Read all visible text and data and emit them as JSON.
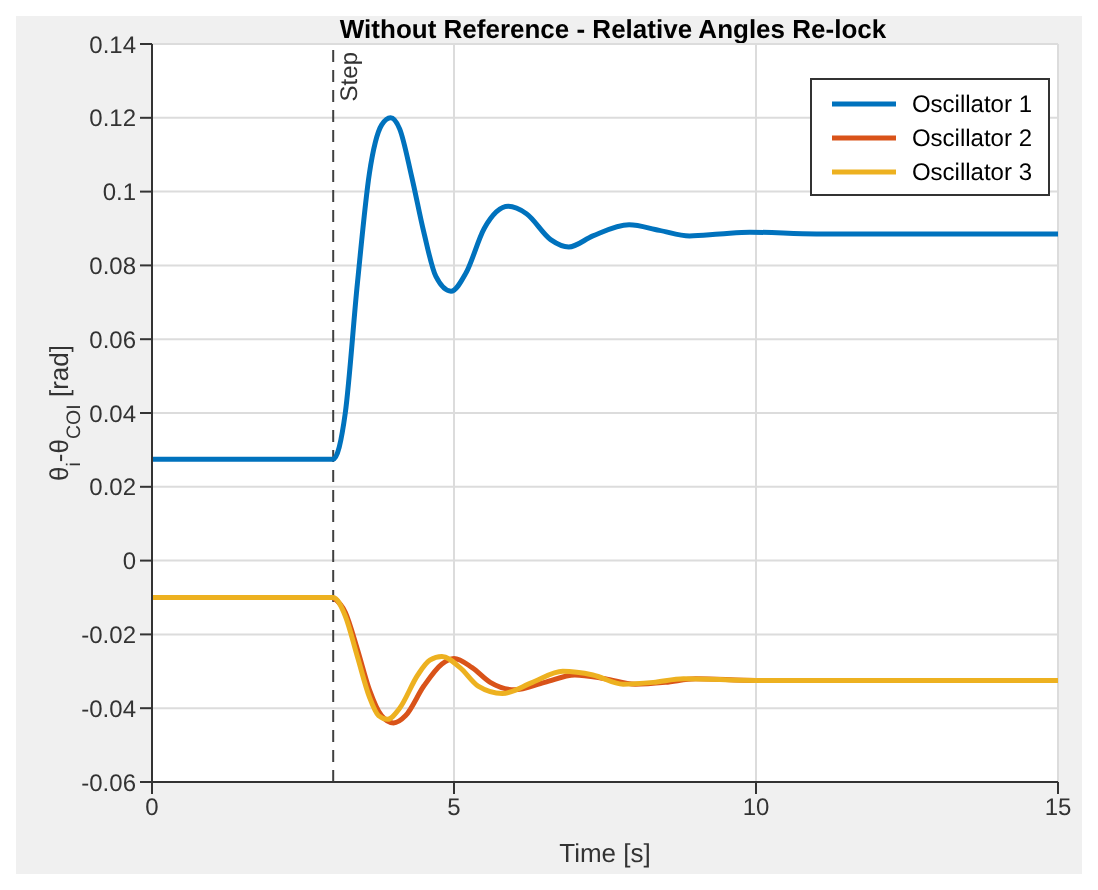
{
  "chart_data": {
    "type": "line",
    "title": "Without Reference - Relative Angles Re-lock",
    "xlabel": "Time [s]",
    "ylabel": "θ$_{i}$-θ$_{COI}$ [rad]",
    "xlim": [
      0,
      15
    ],
    "xticks": [
      0,
      5,
      10,
      15
    ],
    "ylim": [
      -0.06,
      0.14
    ],
    "yticks": [
      -0.06,
      -0.04,
      -0.02,
      0,
      0.02,
      0.04,
      0.06,
      0.08,
      0.1,
      0.12,
      0.14
    ],
    "grid": true,
    "legend": "top right",
    "marker": "none",
    "line_style": "solid",
    "ref_lines": [
      {
        "axis": "x",
        "value": 3,
        "label": "Step",
        "color": "#404040",
        "line_style": "dashed"
      }
    ],
    "series": [
      {
        "name": "Oscillator 1",
        "color": "#0072bd",
        "x": [
          0,
          3,
          3.2,
          3.4,
          3.6,
          3.8,
          3.95,
          4.1,
          4.3,
          4.5,
          4.7,
          4.95,
          5.2,
          5.5,
          5.9,
          6.2,
          6.6,
          6.9,
          7.3,
          7.9,
          8.4,
          8.9,
          9.4,
          9.9,
          11,
          15
        ],
        "values": [
          0.0275,
          0.0275,
          0.04,
          0.075,
          0.105,
          0.118,
          0.12,
          0.117,
          0.104,
          0.089,
          0.077,
          0.073,
          0.078,
          0.09,
          0.096,
          0.094,
          0.087,
          0.085,
          0.088,
          0.091,
          0.0895,
          0.088,
          0.0885,
          0.089,
          0.0885,
          0.0885
        ]
      },
      {
        "name": "Oscillator 2",
        "color": "#d95319",
        "x": [
          3,
          3.2,
          3.4,
          3.6,
          3.8,
          4.0,
          4.2,
          4.5,
          4.8,
          5.0,
          5.3,
          5.6,
          6.0,
          6.5,
          7.0,
          7.5,
          8.0,
          8.5,
          9.0,
          10,
          15
        ],
        "values": [
          -0.01,
          -0.014,
          -0.024,
          -0.035,
          -0.042,
          -0.044,
          -0.042,
          -0.034,
          -0.028,
          -0.0265,
          -0.029,
          -0.033,
          -0.035,
          -0.033,
          -0.031,
          -0.032,
          -0.0335,
          -0.033,
          -0.032,
          -0.0325,
          -0.0325
        ]
      },
      {
        "name": "Oscillator 3",
        "color": "#edb120",
        "x": [
          0,
          3,
          3.2,
          3.4,
          3.6,
          3.75,
          3.9,
          4.1,
          4.4,
          4.6,
          4.8,
          5.1,
          5.4,
          5.8,
          6.3,
          6.8,
          7.3,
          7.8,
          8.3,
          8.8,
          10,
          15
        ],
        "values": [
          -0.01,
          -0.01,
          -0.015,
          -0.026,
          -0.037,
          -0.042,
          -0.043,
          -0.04,
          -0.031,
          -0.027,
          -0.026,
          -0.029,
          -0.034,
          -0.036,
          -0.033,
          -0.03,
          -0.031,
          -0.0335,
          -0.033,
          -0.032,
          -0.0325,
          -0.0325
        ]
      }
    ]
  }
}
